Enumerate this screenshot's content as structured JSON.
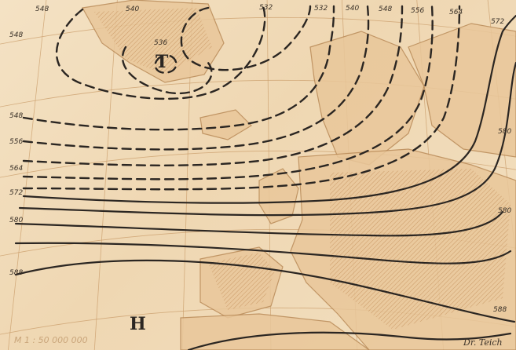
{
  "map": {
    "scale": "M 1 : 50 000 000",
    "author": "Dr. Teich",
    "high_label": "H",
    "low_label": "T",
    "low_value": "536",
    "line_color": "#2b2622",
    "paper_color": "#f1dcbc",
    "land_color": "#e9c79a",
    "contour_labels": {
      "c548_top": "548",
      "c540_top": "540",
      "c532_top_a": "532",
      "c532_top_b": "532",
      "c540_top_b": "540",
      "c548_top_b": "548",
      "c556_top": "556",
      "c564_top": "564",
      "c572_top": "572",
      "c548_left_a": "548",
      "c548_left_b": "548",
      "c556_left": "556",
      "c564_left": "564",
      "c572_left": "572",
      "c580_left": "580",
      "c588_left": "588",
      "c580_right_a": "580",
      "c580_right_b": "580",
      "c588_right": "588"
    }
  }
}
